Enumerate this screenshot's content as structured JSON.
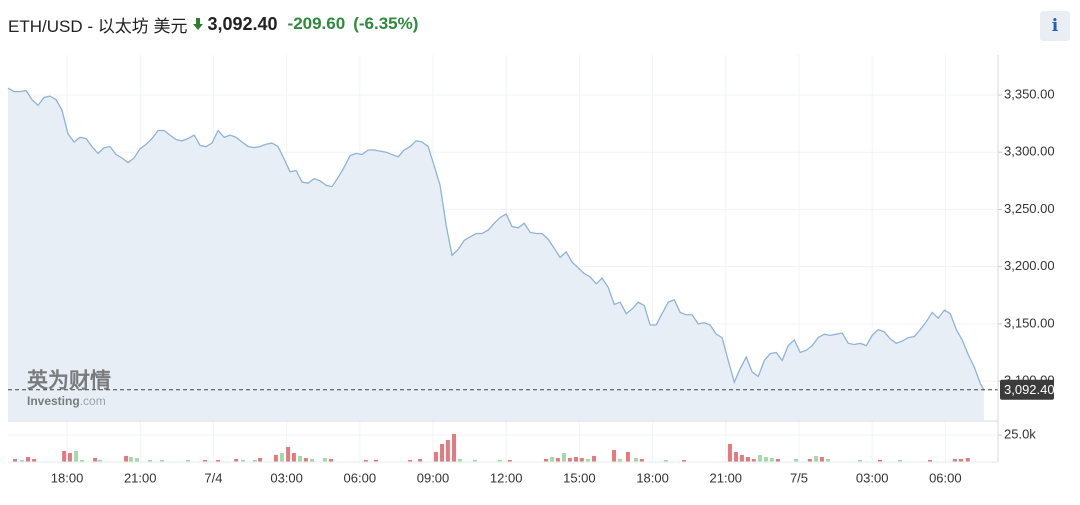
{
  "header": {
    "title": "ETH/USD - 以太坊 美元",
    "change": "-209.60",
    "change_pct": "(-6.35%)",
    "info": "i"
  },
  "watermark": {
    "brand": "英为财情",
    "site": "Investing",
    "domain": ".com"
  },
  "chart_data": [
    {
      "type": "area",
      "color": "#8fb3d9",
      "fill": "#e8eef6",
      "grid": true,
      "xlim": [
        15.58,
        55.6
      ],
      "ylim": [
        3066,
        3385
      ],
      "yticks": [
        {
          "value": 3100,
          "label": "3,100.00"
        },
        {
          "value": 3150,
          "label": "3,150.00"
        },
        {
          "value": 3200,
          "label": "3,200.00"
        },
        {
          "value": 3250,
          "label": "3,250.00"
        },
        {
          "value": 3300,
          "label": "3,300.00"
        },
        {
          "value": 3350,
          "label": "3,350.00"
        }
      ],
      "last_price": {
        "value": 3092.4,
        "label": "3,092.40"
      },
      "x": [
        15.58,
        15.83,
        16.07,
        16.32,
        16.56,
        16.81,
        17.06,
        17.3,
        17.55,
        17.79,
        18.04,
        18.29,
        18.53,
        18.78,
        19.02,
        19.27,
        19.52,
        19.76,
        20.01,
        20.25,
        20.5,
        20.75,
        20.99,
        21.24,
        21.48,
        21.73,
        21.98,
        22.22,
        22.47,
        22.71,
        22.96,
        23.21,
        23.45,
        23.7,
        23.94,
        24.19,
        24.44,
        24.68,
        24.93,
        25.17,
        25.42,
        25.67,
        25.91,
        26.16,
        26.4,
        26.65,
        26.9,
        27.14,
        27.39,
        27.63,
        27.88,
        28.13,
        28.37,
        28.62,
        28.86,
        29.11,
        29.36,
        29.6,
        29.85,
        30.09,
        30.34,
        30.59,
        30.83,
        31.08,
        31.32,
        31.57,
        31.82,
        32.06,
        32.31,
        32.55,
        32.8,
        33.05,
        33.29,
        33.54,
        33.78,
        34.03,
        34.28,
        34.52,
        34.77,
        35.01,
        35.26,
        35.51,
        35.75,
        36.0,
        36.24,
        36.49,
        36.74,
        36.98,
        37.23,
        37.47,
        37.72,
        37.97,
        38.21,
        38.46,
        38.7,
        38.95,
        39.2,
        39.44,
        39.69,
        39.93,
        40.18,
        40.43,
        40.67,
        40.92,
        41.16,
        41.41,
        41.66,
        41.9,
        42.15,
        42.39,
        42.64,
        42.89,
        43.13,
        43.38,
        43.62,
        43.87,
        44.12,
        44.36,
        44.61,
        44.85,
        45.1,
        45.35,
        45.59,
        45.84,
        46.08,
        46.33,
        46.58,
        46.82,
        47.07,
        47.31,
        47.56,
        47.81,
        48.05,
        48.3,
        48.54,
        48.79,
        49.04,
        49.28,
        49.53,
        49.77,
        50.02,
        50.27,
        50.51,
        50.76,
        51.0,
        51.25,
        51.5,
        51.74,
        51.99,
        52.23,
        52.48,
        52.73,
        52.97,
        53.22,
        53.46,
        53.71,
        53.96,
        54.2,
        54.45,
        54.69,
        54.94,
        55.19,
        55.43,
        55.58
      ],
      "values": [
        3356,
        3353,
        3353,
        3354,
        3346,
        3341,
        3348,
        3349,
        3346,
        3337,
        3316,
        3309,
        3313,
        3312,
        3305,
        3299,
        3304,
        3305,
        3298,
        3295,
        3291,
        3295,
        3303,
        3307,
        3312,
        3319,
        3319,
        3315,
        3311,
        3310,
        3312,
        3315,
        3306,
        3305,
        3308,
        3319,
        3313,
        3315,
        3313,
        3309,
        3305,
        3304,
        3305,
        3307,
        3308,
        3305,
        3294,
        3283,
        3284,
        3274,
        3273,
        3277,
        3275,
        3271,
        3270,
        3278,
        3287,
        3297,
        3299,
        3298,
        3302,
        3302,
        3301,
        3300,
        3298,
        3296,
        3302,
        3305,
        3310,
        3309,
        3305,
        3288,
        3271,
        3236,
        3210,
        3215,
        3223,
        3226,
        3229,
        3229,
        3232,
        3238,
        3243,
        3246,
        3235,
        3234,
        3238,
        3230,
        3229,
        3229,
        3224,
        3216,
        3208,
        3213,
        3204,
        3199,
        3194,
        3191,
        3185,
        3190,
        3182,
        3167,
        3169,
        3159,
        3163,
        3169,
        3166,
        3149,
        3149,
        3159,
        3169,
        3171,
        3160,
        3158,
        3158,
        3150,
        3151,
        3149,
        3141,
        3138,
        3118,
        3099,
        3111,
        3121,
        3108,
        3104,
        3118,
        3124,
        3125,
        3118,
        3131,
        3136,
        3125,
        3127,
        3131,
        3138,
        3141,
        3140,
        3141,
        3142,
        3133,
        3132,
        3133,
        3131,
        3140,
        3145,
        3143,
        3137,
        3133,
        3135,
        3138,
        3139,
        3145,
        3152,
        3160,
        3155,
        3162,
        3159,
        3145,
        3136,
        3123,
        3112,
        3098,
        3092.4
      ]
    },
    {
      "type": "bar",
      "xlim": [
        15.58,
        55.6
      ],
      "ylim": [
        0,
        37000
      ],
      "yticks": [
        {
          "value": 25000,
          "label": "25.0k"
        }
      ],
      "xticks": [
        {
          "value": 18,
          "label": "18:00"
        },
        {
          "value": 21,
          "label": "21:00"
        },
        {
          "value": 24,
          "label": "7/4"
        },
        {
          "value": 27,
          "label": "03:00"
        },
        {
          "value": 30,
          "label": "06:00"
        },
        {
          "value": 33,
          "label": "09:00"
        },
        {
          "value": 36,
          "label": "12:00"
        },
        {
          "value": 39,
          "label": "15:00"
        },
        {
          "value": 42,
          "label": "18:00"
        },
        {
          "value": 45,
          "label": "21:00"
        },
        {
          "value": 48,
          "label": "7/5"
        },
        {
          "value": 51,
          "label": "03:00"
        },
        {
          "value": 54,
          "label": "06:00"
        }
      ],
      "x": [
        15.87,
        16.15,
        16.4,
        16.65,
        17.88,
        18.12,
        18.37,
        18.61,
        19.15,
        19.35,
        20.42,
        20.62,
        20.87,
        21.4,
        21.89,
        22.96,
        23.65,
        24.19,
        24.93,
        25.21,
        25.7,
        25.91,
        26.56,
        26.81,
        27.06,
        27.3,
        27.55,
        27.79,
        28.04,
        28.57,
        28.82,
        30.25,
        30.66,
        32.06,
        32.47,
        33.12,
        33.37,
        33.61,
        33.86,
        34.1,
        34.72,
        35.74,
        36.15,
        37.63,
        37.88,
        38.12,
        38.37,
        38.61,
        38.86,
        39.1,
        39.35,
        39.6,
        40.42,
        40.66,
        40.99,
        41.32,
        41.56,
        42.54,
        43.29,
        45.17,
        45.42,
        45.66,
        45.91,
        46.15,
        46.4,
        46.65,
        46.89,
        47.14,
        47.88,
        48.45,
        48.7,
        48.94,
        49.19,
        50.5,
        51.32,
        52.14,
        53.37,
        54.39,
        54.64,
        54.92
      ],
      "values": [
        2800,
        1900,
        4600,
        2800,
        10200,
        8300,
        10200,
        1900,
        3700,
        1900,
        5600,
        4600,
        3700,
        1900,
        1900,
        1900,
        1900,
        1900,
        2800,
        1900,
        1900,
        3700,
        6500,
        8300,
        13900,
        8300,
        5600,
        3700,
        2800,
        3700,
        2800,
        1900,
        1900,
        1900,
        2800,
        9300,
        16700,
        20400,
        25900,
        2800,
        1900,
        1900,
        1900,
        2800,
        4600,
        3700,
        8300,
        3700,
        4600,
        3700,
        2800,
        5600,
        11100,
        2800,
        9300,
        3700,
        2800,
        1900,
        1900,
        16700,
        9300,
        6500,
        4600,
        2800,
        6500,
        4600,
        3700,
        2800,
        2800,
        2800,
        5600,
        4600,
        2800,
        1900,
        1900,
        1900,
        1900,
        2800,
        2800,
        3700
      ],
      "colors": [
        "#e27a7f",
        "#a6d8ae",
        "#e27a7f",
        "#e27a7f",
        "#e27a7f",
        "#e27a7f",
        "#a6d8ae",
        "#a6d8ae",
        "#e27a7f",
        "#a6d8ae",
        "#e27a7f",
        "#a6d8ae",
        "#a6d8ae",
        "#a6d8ae",
        "#a6d8ae",
        "#a6d8ae",
        "#e27a7f",
        "#e27a7f",
        "#e27a7f",
        "#a6d8ae",
        "#a6d8ae",
        "#e27a7f",
        "#e27a7f",
        "#a6d8ae",
        "#e27a7f",
        "#e27a7f",
        "#a6d8ae",
        "#e27a7f",
        "#a6d8ae",
        "#a6d8ae",
        "#e27a7f",
        "#e27a7f",
        "#e27a7f",
        "#e27a7f",
        "#e27a7f",
        "#e27a7f",
        "#e27a7f",
        "#e27a7f",
        "#e27a7f",
        "#a6d8ae",
        "#a6d8ae",
        "#a6d8ae",
        "#e27a7f",
        "#e27a7f",
        "#a6d8ae",
        "#e27a7f",
        "#a6d8ae",
        "#e27a7f",
        "#e27a7f",
        "#e27a7f",
        "#a6d8ae",
        "#e27a7f",
        "#e27a7f",
        "#a6d8ae",
        "#e27a7f",
        "#a6d8ae",
        "#e27a7f",
        "#a6d8ae",
        "#e27a7f",
        "#e27a7f",
        "#e27a7f",
        "#e27a7f",
        "#e27a7f",
        "#e27a7f",
        "#a6d8ae",
        "#a6d8ae",
        "#a6d8ae",
        "#e27a7f",
        "#a6d8ae",
        "#e27a7f",
        "#a6d8ae",
        "#e27a7f",
        "#a6d8ae",
        "#a6d8ae",
        "#e27a7f",
        "#a6d8ae",
        "#e27a7f",
        "#e27a7f",
        "#e27a7f",
        "#e27a7f"
      ]
    }
  ]
}
